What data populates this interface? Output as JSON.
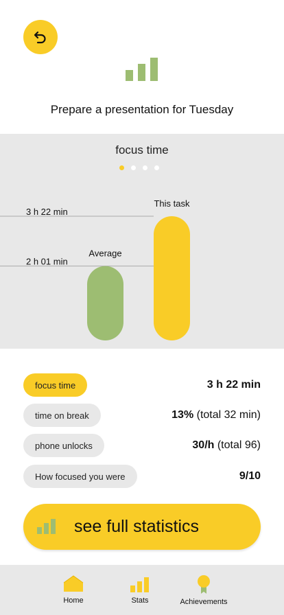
{
  "header": {
    "back_icon": "undo-arrow-icon",
    "bars_icon": "bar-chart-icon",
    "task_title": "Prepare a presentation for Tuesday"
  },
  "panel": {
    "title": "focus time",
    "page_count": 4,
    "active_page": 0
  },
  "chart_data": {
    "type": "bar",
    "categories": [
      "Average",
      "This task"
    ],
    "values": [
      121,
      202
    ],
    "value_labels": [
      "2 h 01 min",
      "3 h 22 min"
    ],
    "colors": [
      "#9dbd72",
      "#f9cc27"
    ],
    "unit": "minutes",
    "ylim": [
      0,
      202
    ]
  },
  "stats": {
    "rows": [
      {
        "label": "focus time",
        "value_bold": "3 h 22 min",
        "value_rest": "",
        "active": true
      },
      {
        "label": "time on break",
        "value_bold": "13%",
        "value_rest": " (total 32 min)",
        "active": false
      },
      {
        "label": "phone unlocks",
        "value_bold": "30/h",
        "value_rest": " (total 96)",
        "active": false
      },
      {
        "label": "How focused you were",
        "value_bold": "9/10",
        "value_rest": "",
        "active": false
      }
    ]
  },
  "cta": {
    "label": "see full statistics",
    "icon": "bar-chart-icon"
  },
  "tabbar": {
    "items": [
      {
        "label": "Home",
        "icon": "home-icon"
      },
      {
        "label": "Stats",
        "icon": "bar-chart-icon"
      },
      {
        "label": "Achievements",
        "icon": "medal-icon"
      }
    ]
  },
  "colors": {
    "accent": "#f9cc27",
    "green": "#9dbd72",
    "panel": "#e8e8e8"
  }
}
